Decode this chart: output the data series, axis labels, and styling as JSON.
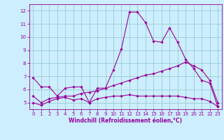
{
  "title": "",
  "xlabel": "Windchill (Refroidissement éolien,°C)",
  "background_color": "#cceeff",
  "line_color": "#990099",
  "grid_color": "#99cccc",
  "xlim": [
    -0.5,
    23.5
  ],
  "ylim": [
    4.5,
    12.5
  ],
  "yticks": [
    5,
    6,
    7,
    8,
    9,
    10,
    11,
    12
  ],
  "xticks": [
    0,
    1,
    2,
    3,
    4,
    5,
    6,
    7,
    8,
    9,
    10,
    11,
    12,
    13,
    14,
    15,
    16,
    17,
    18,
    19,
    20,
    21,
    22,
    23
  ],
  "series1_x": [
    0,
    1,
    2,
    3,
    4,
    5,
    6,
    7,
    8,
    9,
    10,
    11,
    12,
    13,
    14,
    15,
    16,
    17,
    18,
    19,
    20,
    21,
    22,
    23
  ],
  "series1_y": [
    6.9,
    6.2,
    6.2,
    5.5,
    6.1,
    6.2,
    6.2,
    5.0,
    6.1,
    6.1,
    7.5,
    9.1,
    11.9,
    11.9,
    11.1,
    9.7,
    9.6,
    10.7,
    9.6,
    8.3,
    7.6,
    6.7,
    6.5,
    4.7
  ],
  "series2_x": [
    0,
    1,
    2,
    3,
    4,
    5,
    6,
    7,
    8,
    9,
    10,
    11,
    12,
    13,
    14,
    15,
    16,
    17,
    18,
    19,
    20,
    21,
    22,
    23
  ],
  "series2_y": [
    5.0,
    4.8,
    5.1,
    5.3,
    5.4,
    5.2,
    5.3,
    5.0,
    5.3,
    5.4,
    5.5,
    5.5,
    5.6,
    5.5,
    5.5,
    5.5,
    5.5,
    5.5,
    5.5,
    5.4,
    5.3,
    5.3,
    5.1,
    4.7
  ],
  "series3_x": [
    0,
    1,
    2,
    3,
    4,
    5,
    6,
    7,
    8,
    9,
    10,
    11,
    12,
    13,
    14,
    15,
    16,
    17,
    18,
    19,
    20,
    21,
    22,
    23
  ],
  "series3_y": [
    5.5,
    5.0,
    5.3,
    5.4,
    5.5,
    5.5,
    5.7,
    5.8,
    5.9,
    6.1,
    6.3,
    6.5,
    6.7,
    6.9,
    7.1,
    7.2,
    7.4,
    7.6,
    7.8,
    8.1,
    7.8,
    7.5,
    6.7,
    5.0
  ],
  "tick_fontsize": 5.0,
  "xlabel_fontsize": 5.5,
  "marker_size": 2.2,
  "line_width": 0.8
}
